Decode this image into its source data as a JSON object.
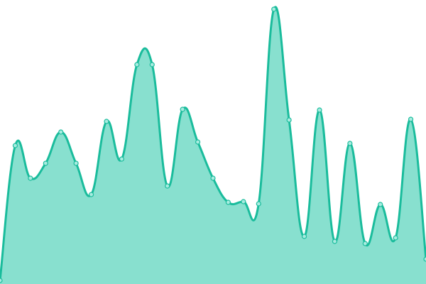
{
  "chart_data": {
    "type": "area",
    "x": [
      0,
      1,
      2,
      3,
      4,
      5,
      6,
      7,
      8,
      9,
      10,
      11,
      12,
      13,
      14,
      15,
      16,
      17,
      18,
      19,
      20,
      21,
      22,
      23,
      24,
      25,
      26,
      27,
      28
    ],
    "values": [
      5,
      195,
      149,
      170,
      214,
      170,
      126,
      229,
      176,
      309,
      309,
      138,
      246,
      200,
      149,
      115,
      116,
      113,
      387,
      231,
      67,
      245,
      60,
      198,
      57,
      112,
      65,
      232,
      35
    ],
    "ylim": [
      0,
      400
    ],
    "xlim": [
      0,
      28
    ],
    "grid": false,
    "curve": "smooth",
    "colors": {
      "line": "#1abc9c",
      "fill": "#88e0cf",
      "marker_fill": "#a8ece0",
      "marker_stroke": "#1abc9c"
    }
  }
}
